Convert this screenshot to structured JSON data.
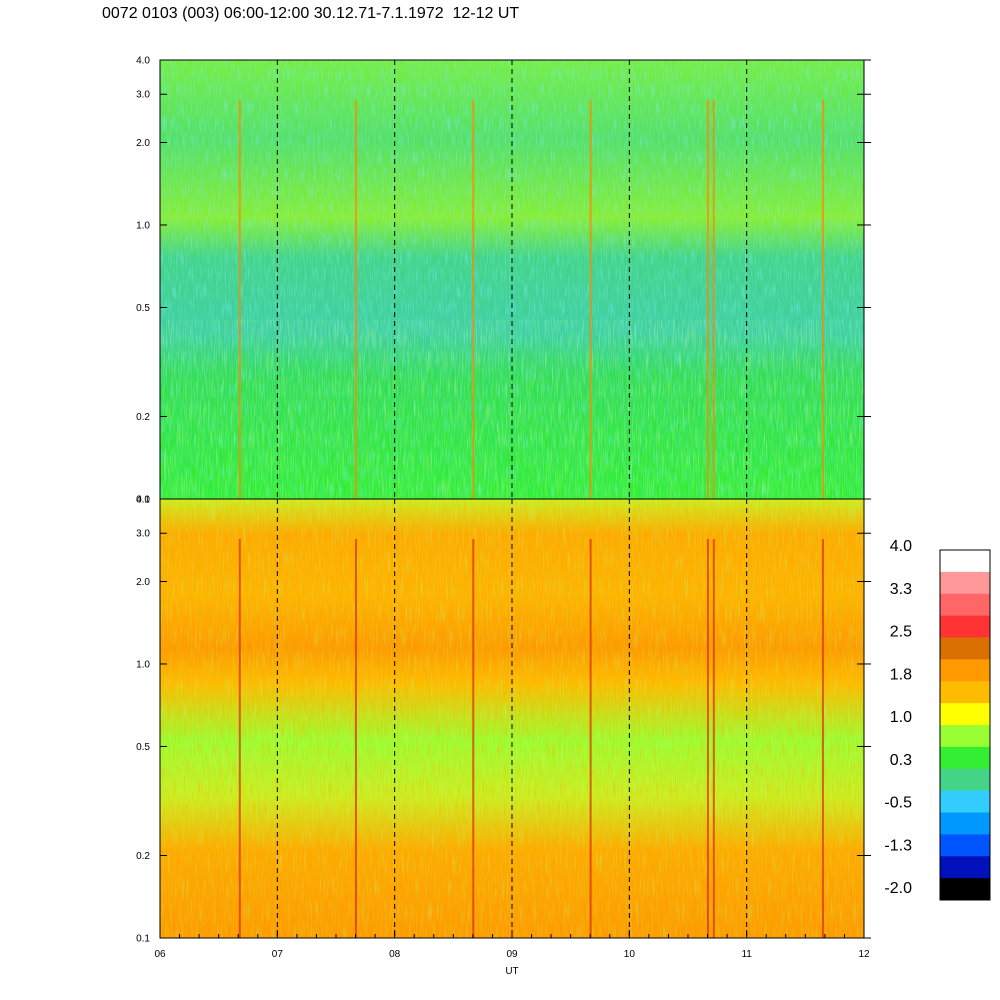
{
  "title": "0072 0103 (003) 06:00-12:00 30.12.71-7.1.1972  12-12 UT",
  "chart_data": {
    "type": "heatmap",
    "xlabel": "UT",
    "x_ticks": [
      "06",
      "07",
      "08",
      "09",
      "10",
      "11",
      "12"
    ],
    "x_range": [
      6,
      12
    ],
    "dashed_hours": [
      7,
      8,
      9,
      10,
      11
    ],
    "panels": [
      {
        "name": "upper",
        "y_scale": "log",
        "y_range": [
          0.1,
          4.0
        ],
        "y_ticks": [
          0.1,
          0.2,
          0.5,
          1.0,
          2.0,
          3.0,
          4.0
        ],
        "y_tick_labels": [
          "0.1",
          "0.2",
          "0.5",
          "1.0",
          "2.0",
          "3.0",
          "4.0"
        ],
        "spikes_hours": [
          6.68,
          7.67,
          8.67,
          9.67,
          10.67,
          10.72,
          11.65
        ]
      },
      {
        "name": "lower",
        "y_scale": "log",
        "y_range": [
          0.1,
          4.0
        ],
        "y_ticks": [
          0.1,
          0.2,
          0.5,
          1.0,
          2.0,
          3.0,
          4.0
        ],
        "y_tick_labels": [
          "0.1",
          "0.2",
          "0.5",
          "1.0",
          "2.0",
          "3.0",
          "4.0"
        ],
        "spikes_hours": [
          6.68,
          7.67,
          8.67,
          9.67,
          10.67,
          10.72,
          11.65
        ]
      }
    ],
    "colorbar": {
      "labels": [
        "4.0",
        "3.3",
        "2.5",
        "1.8",
        "1.0",
        "0.3",
        "-0.5",
        "-1.3",
        "-2.0"
      ],
      "colors": [
        "#ffffff",
        "#ff9999",
        "#ff6666",
        "#ff3333",
        "#d97000",
        "#ff9900",
        "#ffbb00",
        "#ffff00",
        "#99ff33",
        "#33ee33",
        "#44d488",
        "#33ccff",
        "#0099ff",
        "#0055ff",
        "#0011bb",
        "#000000"
      ]
    }
  }
}
